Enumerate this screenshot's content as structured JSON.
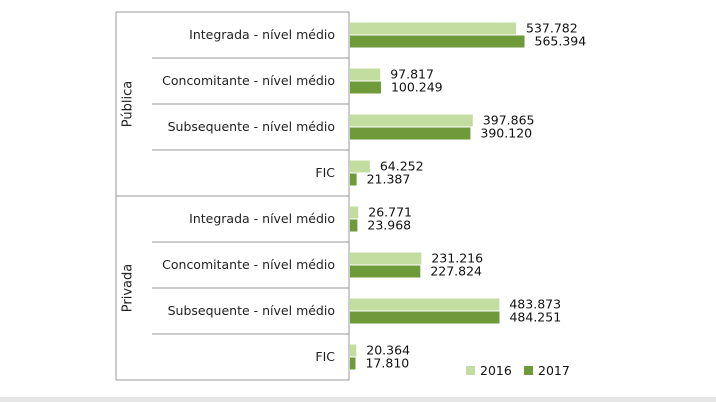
{
  "chart_data": {
    "type": "bar",
    "orientation": "horizontal",
    "groups": [
      {
        "label": "Pública",
        "categories": [
          "Integrada - nível médio",
          "Concomitante - nível médio",
          "Subsequente - nível médio",
          "FIC"
        ]
      },
      {
        "label": "Privada",
        "categories": [
          "Integrada - nível médio",
          "Concomitante - nível médio",
          "Subsequente - nível médio",
          "FIC"
        ]
      }
    ],
    "series": [
      {
        "name": "2016",
        "color": "#c3dca0",
        "values": [
          537782,
          97817,
          397865,
          64252,
          26771,
          231216,
          483873,
          20364
        ],
        "labels": [
          "537.782",
          "97.817",
          "397.865",
          "64.252",
          "26.771",
          "231.216",
          "483.873",
          "20.364"
        ]
      },
      {
        "name": "2017",
        "color": "#6e9a3a",
        "values": [
          565394,
          100249,
          390120,
          21387,
          23968,
          227824,
          484251,
          17810
        ],
        "labels": [
          "565.394",
          "100.249",
          "390.120",
          "21.387",
          "23.968",
          "227.824",
          "484.251",
          "17.810"
        ]
      }
    ],
    "xlim": [
      0,
      600000
    ],
    "grid": false,
    "legend_position": "bottom-right"
  }
}
